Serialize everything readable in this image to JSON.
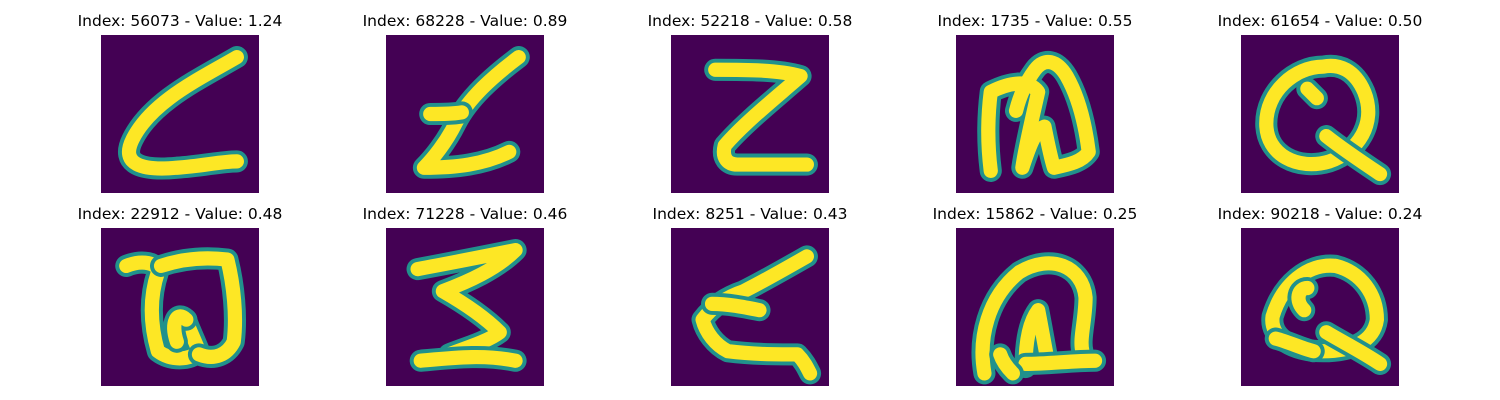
{
  "figure": {
    "colormap": {
      "background": "#440154",
      "edge": "#21918c",
      "stroke": "#fde725"
    },
    "panels": [
      {
        "title": "Index: 56073 - Value: 1.24",
        "glyph": "c-shape"
      },
      {
        "title": "Index: 68228 - Value: 0.89",
        "glyph": "z-shape"
      },
      {
        "title": "Index: 52218 - Value: 0.58",
        "glyph": "z-block"
      },
      {
        "title": "Index: 1735 - Value: 0.55",
        "glyph": "w-loop"
      },
      {
        "title": "Index: 61654 - Value: 0.50",
        "glyph": "q-shape"
      },
      {
        "title": "Index: 22912 - Value: 0.48",
        "glyph": "w-shape"
      },
      {
        "title": "Index: 71228 - Value: 0.46",
        "glyph": "sigma-shape"
      },
      {
        "title": "Index: 8251 - Value: 0.43",
        "glyph": "z-curve"
      },
      {
        "title": "Index: 15862 - Value: 0.25",
        "glyph": "d-loop"
      },
      {
        "title": "Index: 90218 - Value: 0.24",
        "glyph": "q-loop"
      }
    ]
  }
}
